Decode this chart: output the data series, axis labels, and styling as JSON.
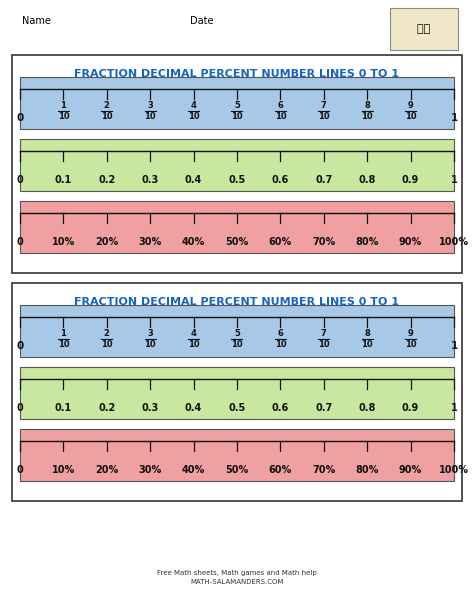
{
  "title": "FRACTION DECIMAL PERCENT NUMBER LINES 0 TO 1",
  "title_color": "#1565c0",
  "bg_color": "#ffffff",
  "name_label": "Name",
  "date_label": "Date",
  "strip_colors": {
    "fraction": "#a8c8e8",
    "decimal": "#c8e8a0",
    "percent": "#f0a0a0"
  },
  "fraction_numerators": [
    "0",
    "1",
    "2",
    "3",
    "4",
    "5",
    "6",
    "7",
    "8",
    "9",
    "1"
  ],
  "decimal_labels": [
    "0",
    "0.1",
    "0.2",
    "0.3",
    "0.4",
    "0.5",
    "0.6",
    "0.7",
    "0.8",
    "0.9",
    "1"
  ],
  "percent_labels": [
    "0",
    "10%",
    "20%",
    "30%",
    "40%",
    "50%",
    "60%",
    "70%",
    "80%",
    "90%",
    "100%"
  ],
  "border_color": "#333333",
  "tick_color": "#111111",
  "label_color": "#111111",
  "website_text": "Free Math sheets, Math games and Math help\nMATH-SALAMANDERS.COM"
}
